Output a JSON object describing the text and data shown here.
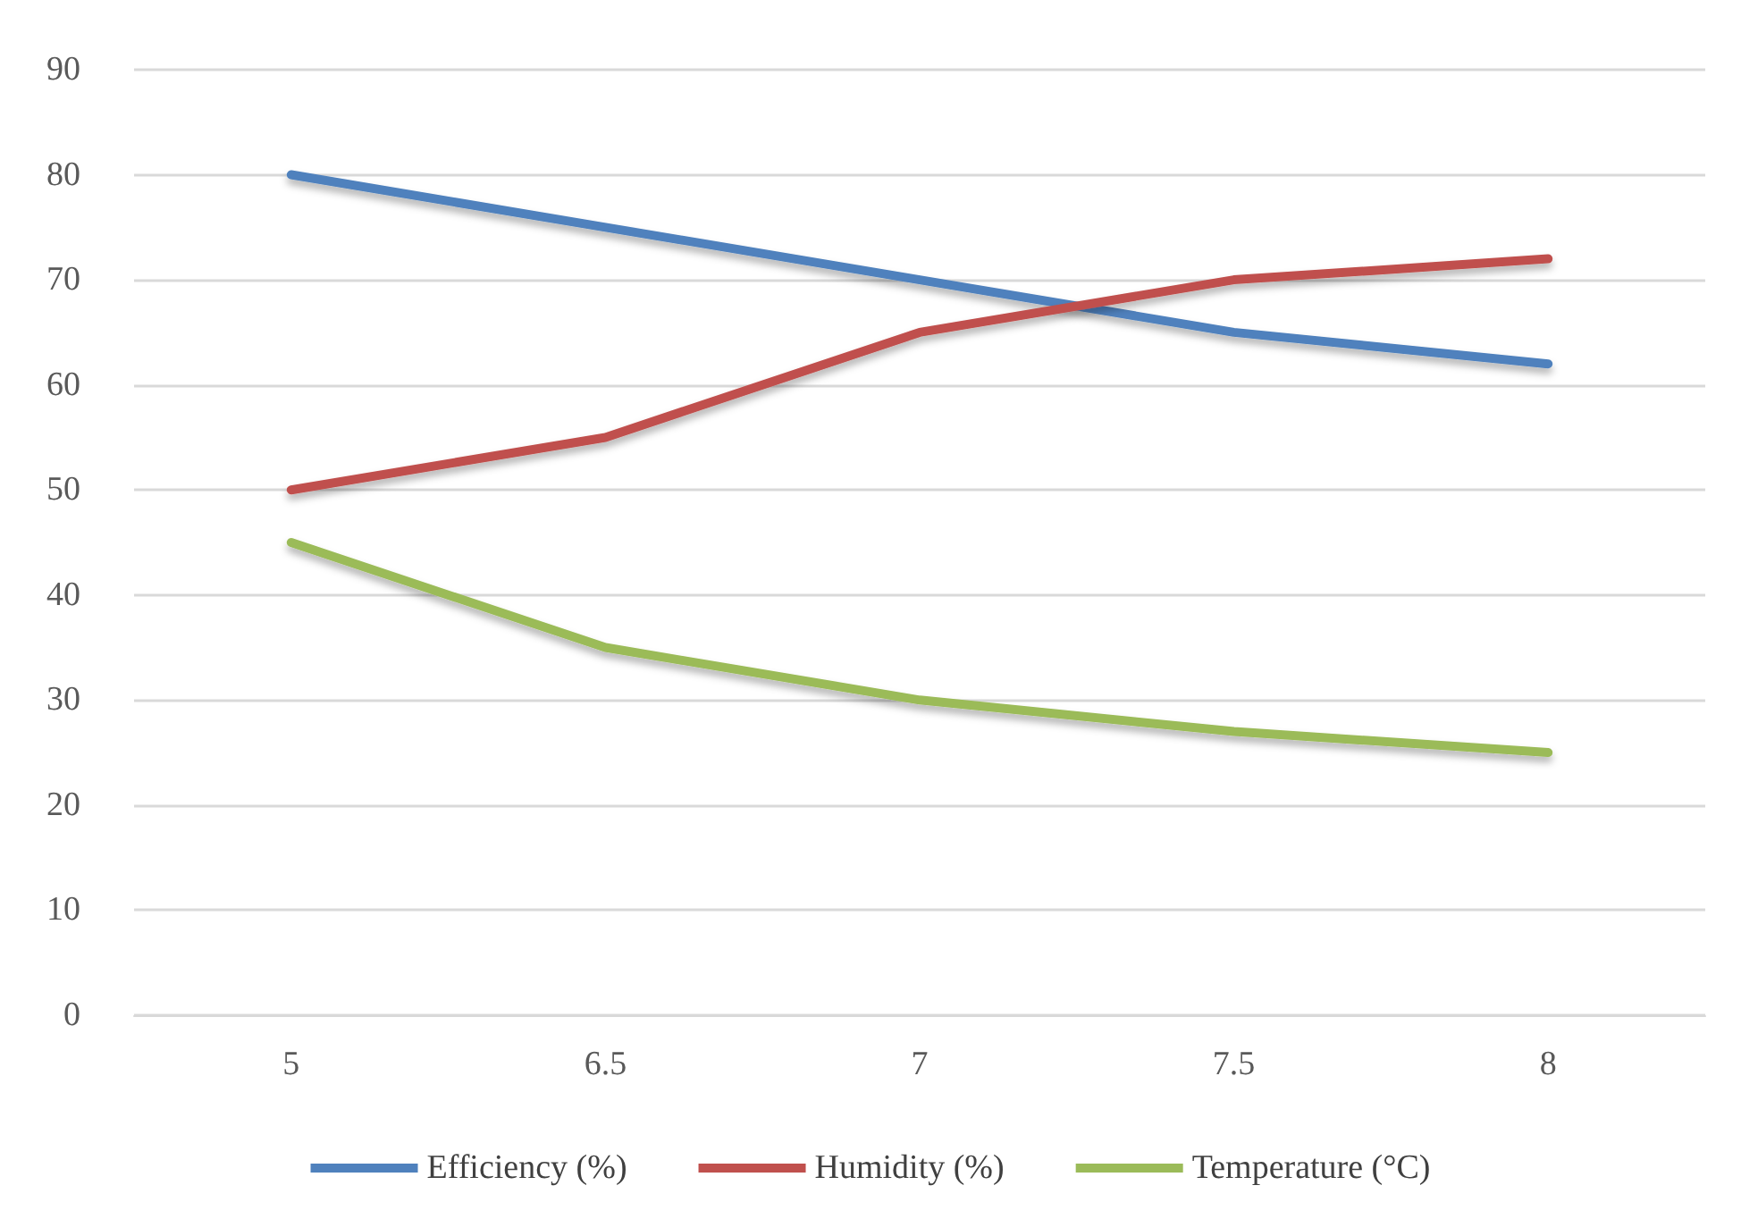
{
  "chart_data": {
    "type": "line",
    "categories": [
      "5",
      "6.5",
      "7",
      "7.5",
      "8"
    ],
    "series": [
      {
        "name": "Efficiency (%)",
        "color": "#4f81bd",
        "values": [
          80,
          75,
          70,
          65,
          62
        ]
      },
      {
        "name": "Humidity (%)",
        "color": "#c0504d",
        "values": [
          50,
          55,
          65,
          70,
          72
        ]
      },
      {
        "name": "Temperature (°C)",
        "color": "#9bbb59",
        "values": [
          45,
          35,
          30,
          27,
          25
        ]
      }
    ],
    "ylim": [
      0,
      90
    ],
    "yticks": [
      0,
      10,
      20,
      30,
      40,
      50,
      60,
      70,
      80,
      90
    ],
    "grid": "y",
    "legend": "bottom",
    "marker": "none",
    "line_style": "solid"
  }
}
